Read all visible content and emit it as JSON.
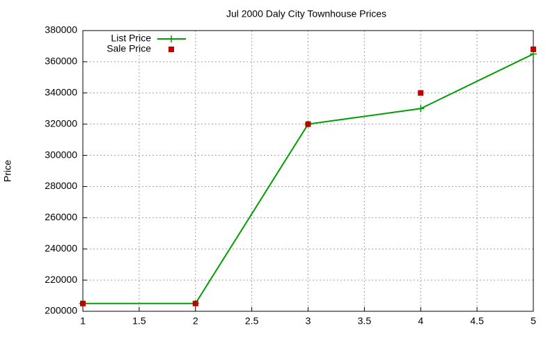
{
  "chart_data": {
    "type": "line",
    "title": "Jul 2000 Daly City Townhouse Prices",
    "y_label": "Price",
    "x": [
      1,
      2,
      3,
      4,
      5
    ],
    "series": [
      {
        "name": "List Price",
        "color": "#009e00",
        "mode": "lines+markers",
        "values": [
          205000,
          205000,
          320000,
          330000,
          365000
        ]
      },
      {
        "name": "Sale Price",
        "color": "#c00000",
        "mode": "markers",
        "values": [
          205000,
          205000,
          320000,
          340000,
          368000
        ]
      }
    ],
    "xlim": [
      1,
      5
    ],
    "xticks": [
      1,
      1.5,
      2,
      2.5,
      3,
      3.5,
      4,
      4.5,
      5
    ],
    "ylim": [
      200000,
      380000
    ],
    "yticks": [
      200000,
      220000,
      240000,
      260000,
      280000,
      300000,
      320000,
      340000,
      360000,
      380000
    ],
    "grid": true,
    "legend": "top-left"
  }
}
